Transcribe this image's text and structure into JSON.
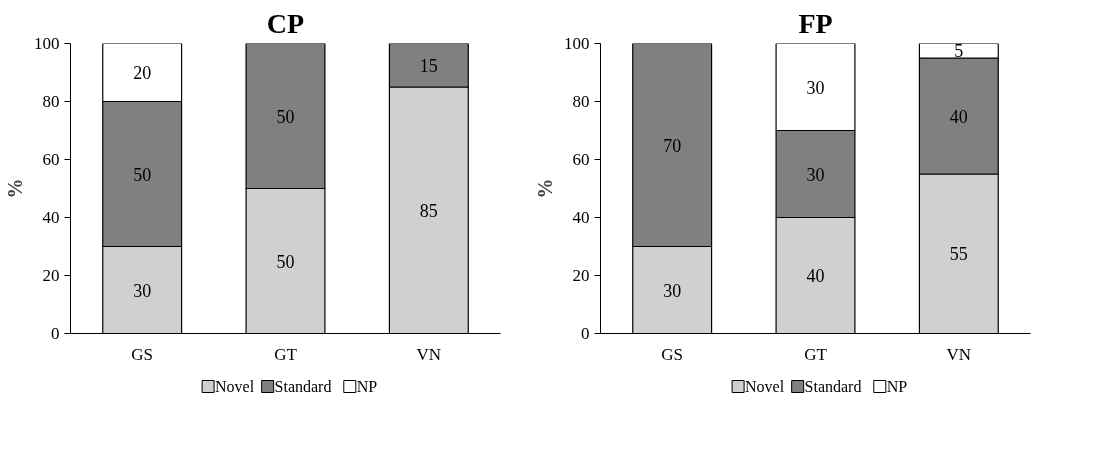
{
  "chart_data": [
    {
      "type": "bar",
      "title": "CP",
      "ylabel": "%",
      "categories": [
        "GS",
        "GT",
        "VN"
      ],
      "stacked": true,
      "ylim": [
        0,
        100
      ],
      "yticks": [
        0,
        20,
        40,
        60,
        80,
        100
      ],
      "grid": false,
      "legend": "bottom",
      "series": [
        {
          "name": "Novel",
          "color": "#d0cfd1",
          "values": [
            30,
            50,
            85
          ],
          "value_labels": [
            "30",
            "50",
            "85"
          ]
        },
        {
          "name": "Standard",
          "color": "#808080",
          "values": [
            50,
            50,
            15
          ],
          "value_labels": [
            "50",
            "50",
            "15"
          ]
        },
        {
          "name": "NP",
          "color": "#ffffff",
          "values": [
            20,
            0,
            0
          ],
          "value_labels": [
            "20",
            null,
            null
          ]
        }
      ]
    },
    {
      "type": "bar",
      "title": "FP",
      "ylabel": "%",
      "categories": [
        "GS",
        "GT",
        "VN"
      ],
      "stacked": true,
      "ylim": [
        0,
        100
      ],
      "yticks": [
        0,
        20,
        40,
        60,
        80,
        100
      ],
      "grid": false,
      "legend": "bottom",
      "series": [
        {
          "name": "Novel",
          "color": "#d0cfd1",
          "values": [
            30,
            40,
            55
          ],
          "value_labels": [
            "30",
            "40",
            "55"
          ]
        },
        {
          "name": "Standard",
          "color": "#808080",
          "values": [
            70,
            30,
            40
          ],
          "value_labels": [
            "70",
            "30",
            "40"
          ]
        },
        {
          "name": "NP",
          "color": "#ffffff",
          "values": [
            0,
            30,
            5
          ],
          "value_labels": [
            null,
            "30",
            "5"
          ]
        }
      ]
    }
  ]
}
